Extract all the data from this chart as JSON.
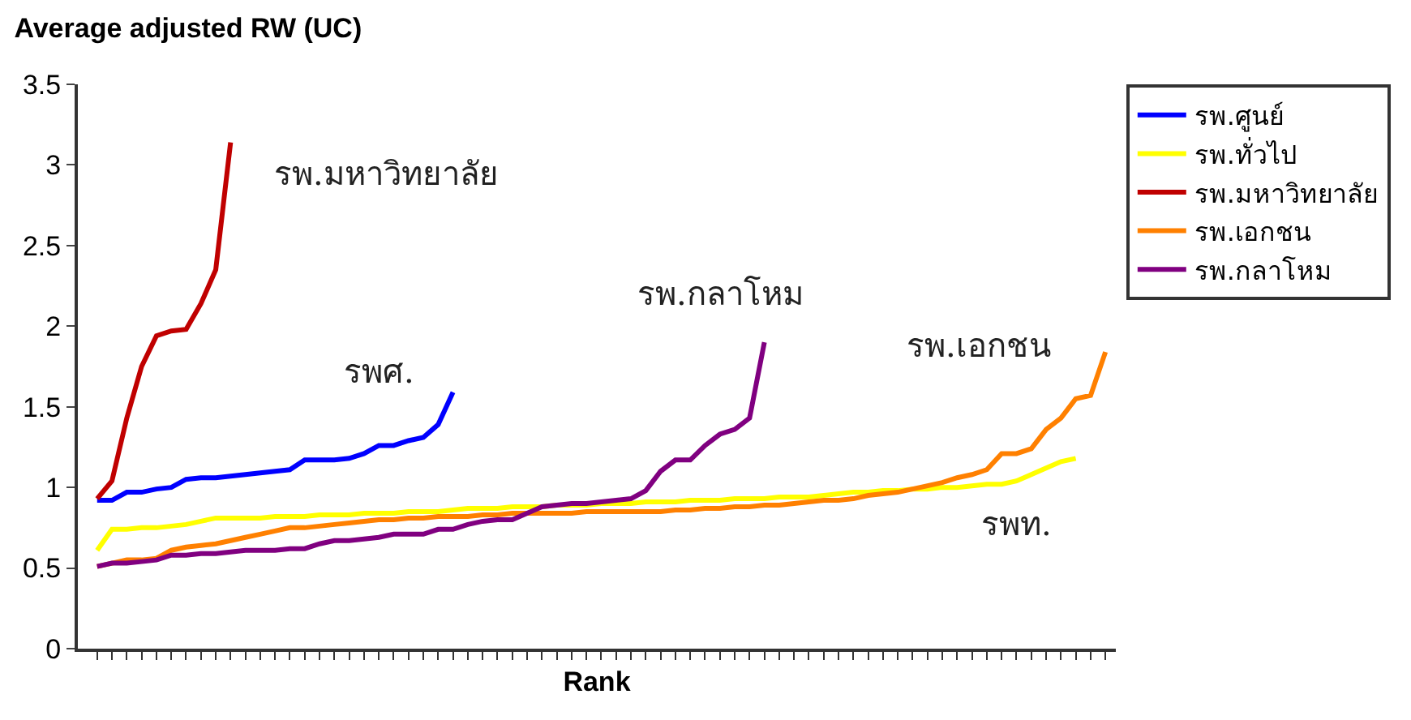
{
  "chart_data": {
    "type": "line",
    "title": "Average adjusted RW (UC)",
    "xlabel": "Rank",
    "categories": [
      null,
      null,
      null,
      null,
      null,
      null,
      null,
      null,
      null,
      null,
      null,
      null,
      null,
      null,
      null,
      null,
      null,
      null,
      null,
      null,
      null,
      null,
      null,
      null,
      null,
      null,
      null,
      null,
      null,
      null,
      null,
      null,
      null,
      null,
      null,
      null,
      null,
      null,
      null,
      null,
      null,
      null,
      null,
      null,
      null,
      null,
      null,
      null,
      null,
      null,
      null,
      null,
      null,
      null,
      null,
      null,
      null,
      null,
      null,
      null,
      null,
      null,
      null,
      null,
      null,
      null,
      null,
      null,
      null
    ],
    "series": [
      {
        "name": "รพ.ศูนย์",
        "color": "#0000ff",
        "values": [
          0.92,
          0.92,
          0.97,
          0.97,
          0.99,
          1.0,
          1.05,
          1.06,
          1.06,
          1.07,
          1.08,
          1.09,
          1.1,
          1.11,
          1.17,
          1.17,
          1.17,
          1.18,
          1.21,
          1.26,
          1.26,
          1.29,
          1.31,
          1.39,
          1.59,
          null,
          null,
          null,
          null,
          null,
          null,
          null,
          null,
          null,
          null,
          null,
          null,
          null,
          null,
          null,
          null,
          null,
          null,
          null,
          null,
          null,
          null,
          null,
          null,
          null,
          null,
          null,
          null,
          null,
          null,
          null,
          null,
          null,
          null,
          null,
          null,
          null,
          null,
          null,
          null,
          null,
          null,
          null,
          null
        ]
      },
      {
        "name": "รพ.ทั่วไป",
        "color": "#ffff00",
        "values": [
          0.61,
          0.74,
          0.74,
          0.75,
          0.75,
          0.76,
          0.77,
          0.79,
          0.81,
          0.81,
          0.81,
          0.81,
          0.82,
          0.82,
          0.82,
          0.83,
          0.83,
          0.83,
          0.84,
          0.84,
          0.84,
          0.85,
          0.85,
          0.85,
          0.86,
          0.87,
          0.87,
          0.87,
          0.88,
          0.88,
          0.88,
          0.89,
          0.89,
          0.89,
          0.9,
          0.9,
          0.9,
          0.91,
          0.91,
          0.91,
          0.92,
          0.92,
          0.92,
          0.93,
          0.93,
          0.93,
          0.94,
          0.94,
          0.94,
          0.95,
          0.96,
          0.97,
          0.97,
          0.98,
          0.98,
          0.99,
          0.99,
          1.0,
          1.0,
          1.01,
          1.02,
          1.02,
          1.04,
          1.08,
          1.12,
          1.16,
          1.18,
          null,
          null
        ]
      },
      {
        "name": "รพ.มหาวิทยาลัย",
        "color": "#c00000",
        "values": [
          0.93,
          1.04,
          1.43,
          1.75,
          1.94,
          1.97,
          1.98,
          2.14,
          2.35,
          3.14,
          null,
          null,
          null,
          null,
          null,
          null,
          null,
          null,
          null,
          null,
          null,
          null,
          null,
          null,
          null,
          null,
          null,
          null,
          null,
          null,
          null,
          null,
          null,
          null,
          null,
          null,
          null,
          null,
          null,
          null,
          null,
          null,
          null,
          null,
          null,
          null,
          null,
          null,
          null,
          null,
          null,
          null,
          null,
          null,
          null,
          null,
          null,
          null,
          null,
          null,
          null,
          null,
          null,
          null,
          null,
          null,
          null,
          null,
          null
        ]
      },
      {
        "name": "รพ.เอกชน",
        "color": "#ff8000",
        "values": [
          0.51,
          0.53,
          0.55,
          0.55,
          0.56,
          0.61,
          0.63,
          0.64,
          0.65,
          0.67,
          0.69,
          0.71,
          0.73,
          0.75,
          0.75,
          0.76,
          0.77,
          0.78,
          0.79,
          0.8,
          0.8,
          0.81,
          0.81,
          0.82,
          0.82,
          0.82,
          0.83,
          0.83,
          0.84,
          0.84,
          0.84,
          0.84,
          0.84,
          0.85,
          0.85,
          0.85,
          0.85,
          0.85,
          0.85,
          0.86,
          0.86,
          0.87,
          0.87,
          0.88,
          0.88,
          0.89,
          0.89,
          0.9,
          0.91,
          0.92,
          0.92,
          0.93,
          0.95,
          0.96,
          0.97,
          0.99,
          1.01,
          1.03,
          1.06,
          1.08,
          1.11,
          1.21,
          1.21,
          1.24,
          1.36,
          1.43,
          1.55,
          1.57,
          1.84
        ]
      },
      {
        "name": "รพ.กลาโหม",
        "color": "#800080",
        "values": [
          0.51,
          0.53,
          0.53,
          0.54,
          0.55,
          0.58,
          0.58,
          0.59,
          0.59,
          0.6,
          0.61,
          0.61,
          0.61,
          0.62,
          0.62,
          0.65,
          0.67,
          0.67,
          0.68,
          0.69,
          0.71,
          0.71,
          0.71,
          0.74,
          0.74,
          0.77,
          0.79,
          0.8,
          0.8,
          0.84,
          0.88,
          0.89,
          0.9,
          0.9,
          0.91,
          0.92,
          0.93,
          0.98,
          1.1,
          1.17,
          1.17,
          1.26,
          1.33,
          1.36,
          1.43,
          1.9,
          null,
          null,
          null,
          null,
          null,
          null,
          null,
          null,
          null,
          null,
          null,
          null,
          null,
          null,
          null,
          null,
          null,
          null,
          null,
          null,
          null,
          null,
          null
        ]
      }
    ],
    "annotations": [
      "รพ.มหาวิทยาลัย",
      "รพศ.",
      "รพ.กลาโหม",
      "รพ.เอกชน",
      "รพท."
    ],
    "ylim": [
      0,
      3.5
    ],
    "yticks": [
      0,
      0.5,
      1,
      1.5,
      2,
      2.5,
      3,
      3.5
    ],
    "legend": "top right",
    "marker": "none",
    "line_style": "solid",
    "tick_labels": "y"
  }
}
